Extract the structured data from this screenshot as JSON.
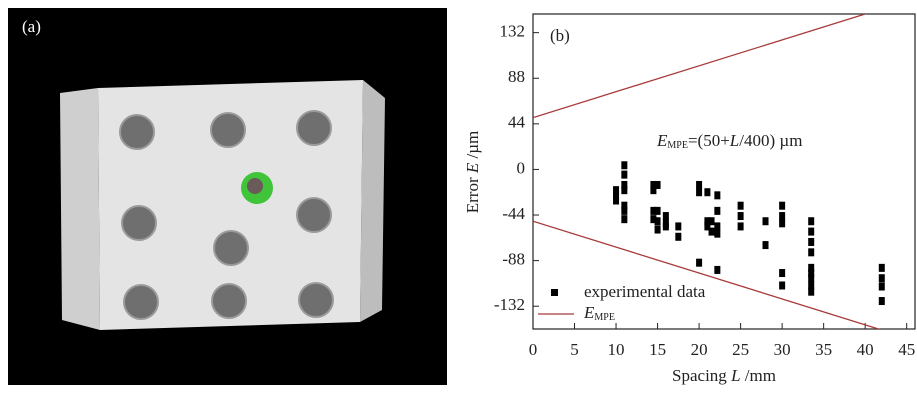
{
  "chart_data": {
    "type": "scatter",
    "panel_labels": [
      "(a)",
      "(b)"
    ],
    "ylabel": [
      "Error ",
      "E",
      " /µm"
    ],
    "xlabel": [
      "Spacing ",
      "L",
      " /mm"
    ],
    "annotation": [
      "E",
      "MPE",
      "=(50+",
      "L",
      "/400) µm"
    ],
    "xlim": [
      0,
      46
    ],
    "ylim": [
      -154,
      150
    ],
    "xticks": [
      0,
      5,
      10,
      15,
      20,
      25,
      30,
      35,
      40,
      45
    ],
    "yticks": [
      -132,
      -88,
      -44,
      0,
      44,
      88,
      132
    ],
    "series": [
      {
        "name": [
          "experimental data"
        ],
        "color": "#000000",
        "marker": "square",
        "x": [
          10,
          10,
          10,
          11,
          11,
          11,
          11,
          11,
          11,
          11,
          14.5,
          14.5,
          14.5,
          14.5,
          15,
          15,
          15,
          15,
          16,
          16,
          16,
          17.5,
          17.5,
          20,
          20,
          20,
          21,
          21,
          21,
          21.5,
          21.5,
          22.2,
          22.2,
          22.2,
          22.2,
          22.2,
          25,
          25,
          25,
          28,
          28,
          30,
          30,
          30,
          30,
          30,
          33.5,
          33.5,
          33.5,
          33.5,
          33.5,
          33.5,
          33.5,
          33.5,
          33.5,
          42,
          42,
          42,
          42
        ],
        "values": [
          -20,
          -25,
          -30,
          4,
          -5,
          -15,
          -20,
          -35,
          -40,
          -48,
          -15,
          -20,
          -40,
          -48,
          -15,
          -40,
          -50,
          -58,
          -45,
          -52,
          -55,
          -55,
          -65,
          -15,
          -22,
          -90,
          -22,
          -50,
          -55,
          -50,
          -60,
          -25,
          -40,
          -55,
          -62,
          -97,
          -35,
          -45,
          -55,
          -50,
          -73,
          -35,
          -45,
          -52,
          -100,
          -112,
          -50,
          -60,
          -70,
          -80,
          -95,
          -100,
          -105,
          -112,
          -118,
          -95,
          -105,
          -113,
          -127
        ]
      },
      {
        "name": [
          "E",
          "MPE"
        ],
        "color": "#a83a3a",
        "marker": "line",
        "x": [
          0,
          46,
          null,
          0,
          46
        ],
        "values": [
          50,
          165,
          null,
          -50,
          -165
        ]
      }
    ]
  }
}
